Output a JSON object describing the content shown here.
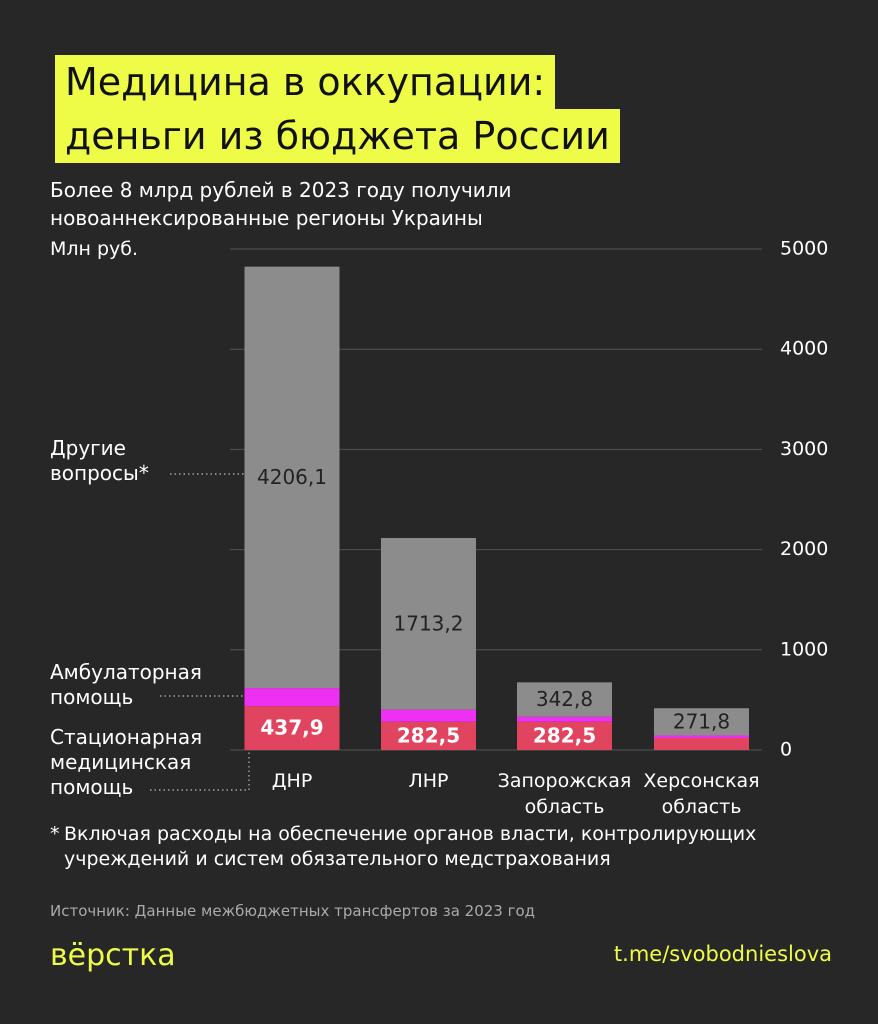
{
  "chart_data": {
    "type": "stacked_bar",
    "title": [
      "Медицина в оккупации:",
      "деньги из бюджета России"
    ],
    "subtitle": "Более 8 млрд рублей в 2023 году получили новоаннексированные регионы Украины",
    "y_label": "Млн руб.",
    "categories": [
      "ДНР",
      "ЛНР",
      "Запорожская область",
      "Херсонская область"
    ],
    "series": [
      {
        "name": "Стационарная медицинская помощь",
        "color": "#e0445e",
        "values": [
          437.9,
          282.5,
          282.5,
          120
        ],
        "value_labels": [
          "437,9",
          "282,5",
          "282,5",
          null
        ]
      },
      {
        "name": "Амбулаторная помощь",
        "color": "#ee30f2",
        "values": [
          180,
          120,
          50,
          25
        ]
      },
      {
        "name": "Другие вопросы*",
        "color": "#8c8c8c",
        "values": [
          4206.1,
          1713.2,
          342.8,
          271.8
        ],
        "value_labels": [
          "4206,1",
          "1713,2",
          "342,8",
          "271,8"
        ]
      }
    ],
    "ylim": [
      0,
      5000
    ],
    "yticks": [
      0,
      1000,
      2000,
      3000,
      4000,
      5000
    ],
    "grid": true,
    "footnote_mark": "*",
    "footnote": "Включая расходы на обеспечение органов власти, контролирующих учреждений и систем обязательного медстрахования",
    "source": "Источник: Данные межбюджетных трансфертов за 2023 год"
  },
  "brand": {
    "logo": "вёрстка",
    "link": "t.me/svobodnieslova"
  }
}
